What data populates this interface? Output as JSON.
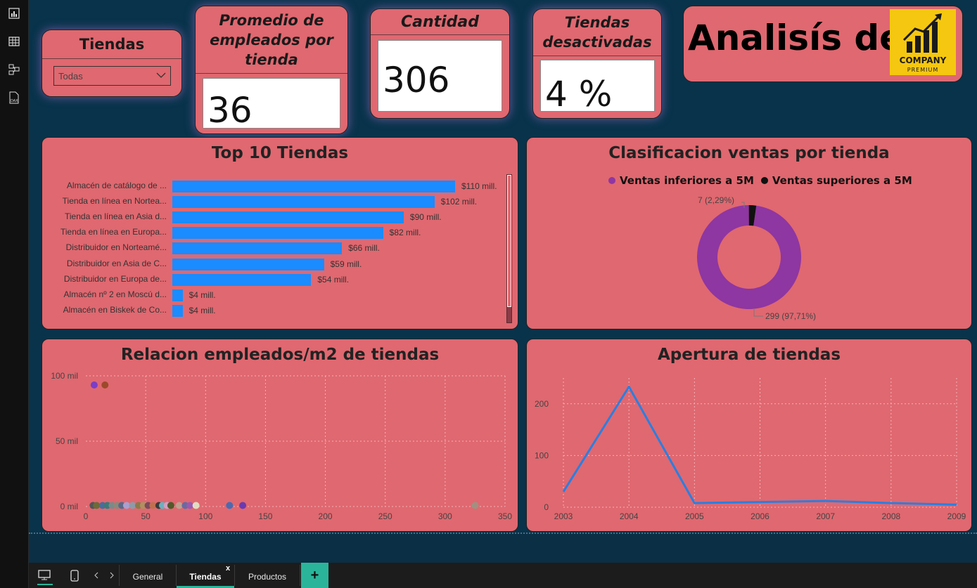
{
  "rail": {
    "icons": [
      "report-view-icon",
      "table-view-icon",
      "model-view-icon",
      "dax-query-icon"
    ]
  },
  "kpis": {
    "filter_title": "Tiendas",
    "filter_value": "Todas",
    "avg_title": "Promedio de empleados por tienda",
    "avg_value": "36",
    "count_title": "Cantidad",
    "count_value": "306",
    "inactive_title": "Tiendas desactivadas",
    "inactive_value": "4 %"
  },
  "header": {
    "title": "Analisís de",
    "logo_line1": "COMPANY",
    "logo_line2": "PREMIUM"
  },
  "top10": {
    "title": "Top 10 Tiendas",
    "rows": [
      {
        "label": "Almacén de catálogo de ...",
        "value": 110,
        "display": "$110 mill."
      },
      {
        "label": "Tienda en línea en Nortea...",
        "value": 102,
        "display": "$102 mill."
      },
      {
        "label": "Tienda en línea en Asia d...",
        "value": 90,
        "display": "$90 mill."
      },
      {
        "label": "Tienda en línea en Europa...",
        "value": 82,
        "display": "$82 mill."
      },
      {
        "label": "Distribuidor en Norteamé...",
        "value": 66,
        "display": "$66 mill."
      },
      {
        "label": "Distribuidor en Asia de C...",
        "value": 59,
        "display": "$59 mill."
      },
      {
        "label": "Distribuidor en Europa de...",
        "value": 54,
        "display": "$54 mill."
      },
      {
        "label": "Almacén nº 2 en Moscú d...",
        "value": 4,
        "display": "$4 mill."
      },
      {
        "label": "Almacén en Biskek de Co...",
        "value": 4,
        "display": "$4 mill."
      }
    ]
  },
  "donut": {
    "title": "Clasificacion ventas por tienda",
    "legend": [
      {
        "name": "Ventas inferiores a 5M",
        "color": "#8e36a2"
      },
      {
        "name": "Ventas superiores a 5M",
        "color": "#111111"
      }
    ],
    "slices": [
      {
        "name": "Ventas inferiores a 5M",
        "value": 299,
        "label": "299 (97,71%)"
      },
      {
        "name": "Ventas superiores a 5M",
        "value": 7,
        "label": "7 (2,29%)"
      }
    ]
  },
  "scatter": {
    "title": "Relacion empleados/m2 de tiendas",
    "y_ticks": [
      "100 mil",
      "50 mil",
      "0 mil"
    ],
    "x_ticks": [
      "0",
      "50",
      "100",
      "150",
      "200",
      "250",
      "300",
      "350"
    ],
    "xlim": [
      0,
      350
    ],
    "ylim": [
      0,
      100000
    ],
    "points": [
      {
        "x": 7,
        "y": 93000,
        "color": "#7a3ec8"
      },
      {
        "x": 16,
        "y": 93000,
        "color": "#9c4a2a"
      },
      {
        "x": 6,
        "y": 800,
        "color": "#555555"
      },
      {
        "x": 9,
        "y": 800,
        "color": "#6b6b3a"
      },
      {
        "x": 14,
        "y": 800,
        "color": "#4a6d9a"
      },
      {
        "x": 18,
        "y": 800,
        "color": "#3a7a7a"
      },
      {
        "x": 22,
        "y": 800,
        "color": "#7a8a8a"
      },
      {
        "x": 26,
        "y": 800,
        "color": "#8a8a7a"
      },
      {
        "x": 30,
        "y": 800,
        "color": "#5a6a8a"
      },
      {
        "x": 34,
        "y": 800,
        "color": "#a7a0d0"
      },
      {
        "x": 39,
        "y": 800,
        "color": "#8d9aa8"
      },
      {
        "x": 44,
        "y": 800,
        "color": "#8a7a4a"
      },
      {
        "x": 48,
        "y": 800,
        "color": "#b09060"
      },
      {
        "x": 52,
        "y": 800,
        "color": "#7a4a5a"
      },
      {
        "x": 56,
        "y": 800,
        "color": "#c07050"
      },
      {
        "x": 61,
        "y": 800,
        "color": "#3a3a3a"
      },
      {
        "x": 64,
        "y": 800,
        "color": "#6ab0c0"
      },
      {
        "x": 68,
        "y": 800,
        "color": "#d0a0c0"
      },
      {
        "x": 71,
        "y": 800,
        "color": "#505a2a"
      },
      {
        "x": 78,
        "y": 800,
        "color": "#c0a090"
      },
      {
        "x": 83,
        "y": 800,
        "color": "#6a6aa0"
      },
      {
        "x": 87,
        "y": 800,
        "color": "#9a5ab0"
      },
      {
        "x": 92,
        "y": 800,
        "color": "#e0dcc0"
      },
      {
        "x": 120,
        "y": 800,
        "color": "#4a6ab0"
      },
      {
        "x": 131,
        "y": 800,
        "color": "#6a3ab0"
      },
      {
        "x": 325,
        "y": 800,
        "color": "#a09080"
      }
    ]
  },
  "line": {
    "title": "Apertura de tiendas",
    "y_ticks": [
      "200",
      "100",
      "0"
    ],
    "ylim": [
      0,
      250
    ],
    "categories": [
      "2003",
      "2004",
      "2005",
      "2006",
      "2007",
      "2008",
      "2009"
    ],
    "values": [
      30,
      233,
      8,
      10,
      12,
      8,
      5
    ],
    "color": "#2a7fe0"
  },
  "tabs": {
    "desktop_label": "desktop-layout-icon",
    "mobile_label": "mobile-layout-icon",
    "items": [
      "General",
      "Tiendas",
      "Productos"
    ],
    "active": "Tiendas",
    "close": "x",
    "add": "+"
  },
  "colors": {
    "card": "#e06870",
    "bar": "#1a8cff",
    "background": "#08334b",
    "accent_tab": "#2ab59a"
  }
}
